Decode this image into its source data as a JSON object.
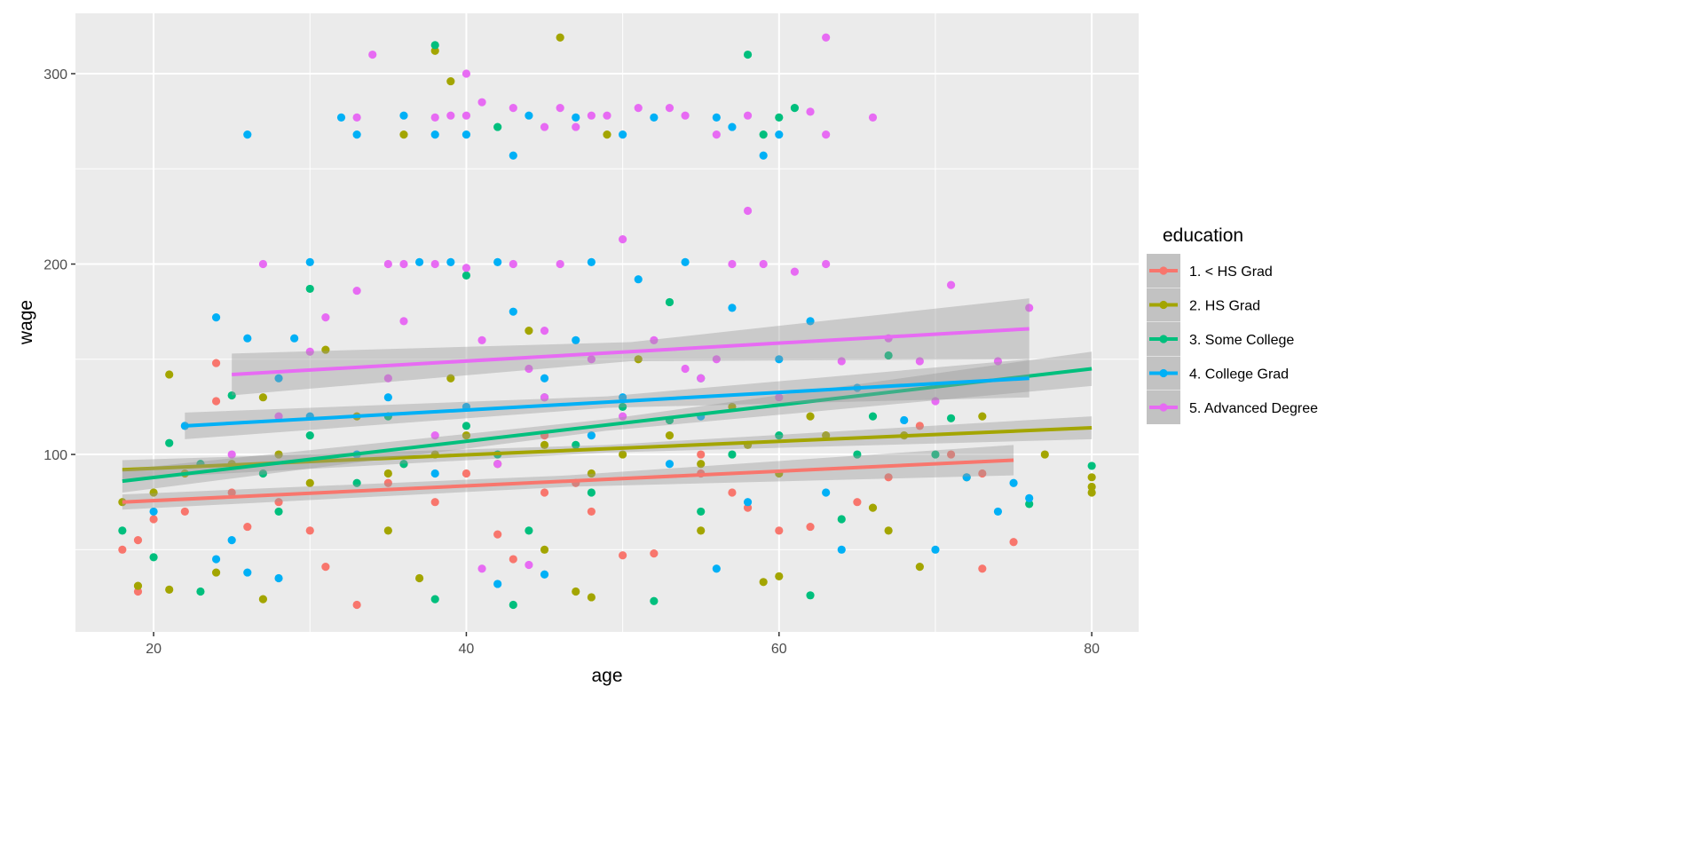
{
  "chart_data": {
    "type": "scatter",
    "title": "",
    "xlabel": "age",
    "ylabel": "wage",
    "xlim": [
      15,
      83
    ],
    "ylim": [
      6.8,
      331.7
    ],
    "xticks": [
      20,
      40,
      60,
      80
    ],
    "yticks": [
      100,
      200,
      300
    ],
    "xtick_labels": [
      "20",
      "40",
      "60",
      "80"
    ],
    "ytick_labels": [
      "100",
      "200",
      "300"
    ],
    "grid": true,
    "legend": {
      "title": "education",
      "placement": "right"
    },
    "series": [
      {
        "name": "1. < HS Grad",
        "color": "#F8766D",
        "fit": {
          "x": [
            18,
            75
          ],
          "y": [
            75,
            97
          ],
          "se": [
            [
              4,
              3,
              8
            ]
          ]
        },
        "points": [
          [
            18,
            50
          ],
          [
            19,
            28
          ],
          [
            19,
            55
          ],
          [
            24,
            128
          ],
          [
            24,
            148
          ],
          [
            33,
            21
          ],
          [
            30,
            60
          ],
          [
            31,
            41
          ],
          [
            22,
            70
          ],
          [
            25,
            80
          ],
          [
            28,
            75
          ],
          [
            35,
            85
          ],
          [
            40,
            90
          ],
          [
            42,
            58
          ],
          [
            45,
            80
          ],
          [
            48,
            70
          ],
          [
            50,
            47
          ],
          [
            52,
            48
          ],
          [
            55,
            90
          ],
          [
            57,
            80
          ],
          [
            60,
            60
          ],
          [
            62,
            62
          ],
          [
            65,
            75
          ],
          [
            67,
            88
          ],
          [
            69,
            115
          ],
          [
            71,
            100
          ],
          [
            73,
            40
          ],
          [
            75,
            54
          ],
          [
            73,
            90
          ],
          [
            38,
            75
          ],
          [
            45,
            110
          ],
          [
            55,
            100
          ],
          [
            43,
            45
          ],
          [
            20,
            66
          ],
          [
            26,
            62
          ],
          [
            36,
            95
          ],
          [
            47,
            85
          ],
          [
            58,
            72
          ]
        ]
      },
      {
        "name": "2. HS Grad",
        "color": "#A3A500",
        "fit": {
          "x": [
            18,
            80
          ],
          "y": [
            92,
            114
          ],
          "se": [
            [
              5,
              2,
              6
            ]
          ]
        },
        "points": [
          [
            38,
            312
          ],
          [
            39,
            296
          ],
          [
            46,
            319
          ],
          [
            36,
            268
          ],
          [
            49,
            268
          ],
          [
            21,
            142
          ],
          [
            27,
            24
          ],
          [
            37,
            35
          ],
          [
            47,
            28
          ],
          [
            48,
            25
          ],
          [
            59,
            33
          ],
          [
            60,
            36
          ],
          [
            69,
            41
          ],
          [
            73,
            120
          ],
          [
            77,
            100
          ],
          [
            80,
            83
          ],
          [
            80,
            88
          ],
          [
            80,
            80
          ],
          [
            72,
            88
          ],
          [
            67,
            60
          ],
          [
            66,
            72
          ],
          [
            18,
            75
          ],
          [
            20,
            80
          ],
          [
            22,
            90
          ],
          [
            25,
            95
          ],
          [
            28,
            100
          ],
          [
            30,
            85
          ],
          [
            33,
            120
          ],
          [
            35,
            90
          ],
          [
            38,
            100
          ],
          [
            40,
            110
          ],
          [
            42,
            95
          ],
          [
            45,
            105
          ],
          [
            48,
            90
          ],
          [
            50,
            100
          ],
          [
            53,
            110
          ],
          [
            55,
            95
          ],
          [
            58,
            105
          ],
          [
            60,
            90
          ],
          [
            63,
            110
          ],
          [
            19,
            31
          ],
          [
            21,
            29
          ],
          [
            24,
            38
          ],
          [
            35,
            60
          ],
          [
            45,
            50
          ],
          [
            55,
            60
          ],
          [
            62,
            120
          ],
          [
            68,
            110
          ],
          [
            31,
            155
          ],
          [
            44,
            165
          ],
          [
            27,
            130
          ],
          [
            39,
            140
          ],
          [
            51,
            150
          ],
          [
            57,
            125
          ]
        ]
      },
      {
        "name": "3. Some College",
        "color": "#00BF7D",
        "fit": {
          "x": [
            18,
            80
          ],
          "y": [
            86,
            145
          ],
          "se": [
            [
              6,
              3,
              9
            ]
          ]
        },
        "points": [
          [
            38,
            315
          ],
          [
            42,
            272
          ],
          [
            61,
            282
          ],
          [
            60,
            277
          ],
          [
            58,
            310
          ],
          [
            30,
            187
          ],
          [
            40,
            194
          ],
          [
            53,
            180
          ],
          [
            59,
            268
          ],
          [
            21,
            106
          ],
          [
            23,
            95
          ],
          [
            25,
            131
          ],
          [
            27,
            90
          ],
          [
            30,
            110
          ],
          [
            35,
            120
          ],
          [
            40,
            115
          ],
          [
            45,
            130
          ],
          [
            50,
            125
          ],
          [
            55,
            140
          ],
          [
            60,
            110
          ],
          [
            65,
            100
          ],
          [
            67,
            152
          ],
          [
            71,
            119
          ],
          [
            76,
            74
          ],
          [
            80,
            94
          ],
          [
            52,
            23
          ],
          [
            43,
            21
          ],
          [
            38,
            24
          ],
          [
            62,
            26
          ],
          [
            23,
            28
          ],
          [
            18,
            60
          ],
          [
            20,
            46
          ],
          [
            28,
            70
          ],
          [
            33,
            85
          ],
          [
            36,
            95
          ],
          [
            42,
            100
          ],
          [
            47,
            105
          ],
          [
            53,
            118
          ],
          [
            57,
            100
          ],
          [
            64,
            66
          ],
          [
            66,
            120
          ],
          [
            70,
            100
          ],
          [
            48,
            80
          ],
          [
            44,
            60
          ],
          [
            55,
            70
          ]
        ]
      },
      {
        "name": "4. College Grad",
        "color": "#00B0F6",
        "fit": {
          "x": [
            22,
            76
          ],
          "y": [
            115,
            140
          ],
          "se": [
            [
              7,
              3,
              10
            ]
          ]
        },
        "points": [
          [
            26,
            268
          ],
          [
            24,
            172
          ],
          [
            26,
            161
          ],
          [
            29,
            161
          ],
          [
            30,
            201
          ],
          [
            32,
            277
          ],
          [
            33,
            268
          ],
          [
            36,
            278
          ],
          [
            38,
            268
          ],
          [
            40,
            268
          ],
          [
            43,
            257
          ],
          [
            44,
            278
          ],
          [
            47,
            277
          ],
          [
            50,
            268
          ],
          [
            52,
            277
          ],
          [
            56,
            277
          ],
          [
            57,
            272
          ],
          [
            59,
            257
          ],
          [
            60,
            268
          ],
          [
            37,
            201
          ],
          [
            39,
            201
          ],
          [
            42,
            201
          ],
          [
            48,
            201
          ],
          [
            51,
            192
          ],
          [
            54,
            201
          ],
          [
            57,
            177
          ],
          [
            62,
            170
          ],
          [
            65,
            135
          ],
          [
            68,
            118
          ],
          [
            72,
            88
          ],
          [
            74,
            70
          ],
          [
            75,
            85
          ],
          [
            76,
            77
          ],
          [
            70,
            50
          ],
          [
            64,
            50
          ],
          [
            56,
            40
          ],
          [
            42,
            32
          ],
          [
            45,
            37
          ],
          [
            26,
            38
          ],
          [
            28,
            35
          ],
          [
            24,
            45
          ],
          [
            25,
            55
          ],
          [
            22,
            115
          ],
          [
            30,
            120
          ],
          [
            35,
            130
          ],
          [
            40,
            125
          ],
          [
            45,
            140
          ],
          [
            50,
            130
          ],
          [
            55,
            120
          ],
          [
            60,
            150
          ],
          [
            33,
            100
          ],
          [
            38,
            90
          ],
          [
            48,
            110
          ],
          [
            53,
            95
          ],
          [
            58,
            75
          ],
          [
            63,
            80
          ],
          [
            20,
            70
          ],
          [
            28,
            140
          ],
          [
            43,
            175
          ],
          [
            47,
            160
          ]
        ]
      },
      {
        "name": "5. Advanced Degree",
        "color": "#E76BF3",
        "fit": {
          "x": [
            25,
            76
          ],
          "y": [
            142,
            166
          ],
          "se": [
            [
              11,
              5,
              16
            ]
          ]
        },
        "points": [
          [
            34,
            310
          ],
          [
            40,
            300
          ],
          [
            27,
            200
          ],
          [
            35,
            200
          ],
          [
            36,
            200
          ],
          [
            38,
            200
          ],
          [
            40,
            198
          ],
          [
            43,
            200
          ],
          [
            46,
            200
          ],
          [
            50,
            213
          ],
          [
            58,
            228
          ],
          [
            59,
            200
          ],
          [
            63,
            200
          ],
          [
            57,
            200
          ],
          [
            71,
            189
          ],
          [
            76,
            177
          ],
          [
            66,
            277
          ],
          [
            63,
            319
          ],
          [
            62,
            280
          ],
          [
            63,
            268
          ],
          [
            41,
            285
          ],
          [
            43,
            282
          ],
          [
            45,
            272
          ],
          [
            46,
            282
          ],
          [
            49,
            278
          ],
          [
            51,
            282
          ],
          [
            53,
            282
          ],
          [
            54,
            278
          ],
          [
            56,
            268
          ],
          [
            58,
            278
          ],
          [
            33,
            277
          ],
          [
            38,
            277
          ],
          [
            39,
            278
          ],
          [
            40,
            278
          ],
          [
            47,
            272
          ],
          [
            48,
            278
          ],
          [
            61,
            196
          ],
          [
            64,
            149
          ],
          [
            67,
            161
          ],
          [
            69,
            149
          ],
          [
            70,
            128
          ],
          [
            74,
            149
          ],
          [
            30,
            154
          ],
          [
            31,
            172
          ],
          [
            33,
            186
          ],
          [
            44,
            145
          ],
          [
            48,
            150
          ],
          [
            52,
            160
          ],
          [
            36,
            170
          ],
          [
            41,
            160
          ],
          [
            55,
            140
          ],
          [
            45,
            130
          ],
          [
            28,
            120
          ],
          [
            25,
            100
          ],
          [
            38,
            110
          ],
          [
            42,
            95
          ],
          [
            50,
            120
          ],
          [
            60,
            130
          ],
          [
            35,
            140
          ],
          [
            41,
            40
          ],
          [
            44,
            42
          ],
          [
            45,
            165
          ],
          [
            56,
            150
          ],
          [
            54,
            145
          ]
        ]
      }
    ]
  }
}
